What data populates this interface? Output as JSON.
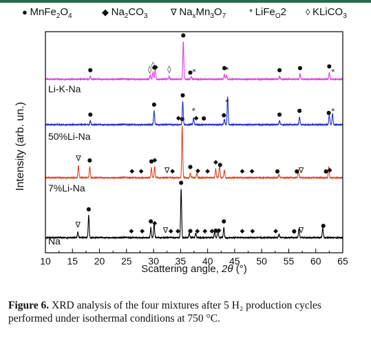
{
  "chart_data": {
    "type": "line",
    "xlabel": "Scattering angle, 2θ (°)",
    "ylabel": "Intensity (arb. un.)",
    "xlim": [
      10,
      65
    ],
    "xticks": [
      10,
      15,
      20,
      25,
      30,
      35,
      40,
      45,
      50,
      55,
      60,
      65
    ],
    "grid": false,
    "legend_position": "top",
    "legend": [
      {
        "marker": "●",
        "label": "MnFe2O4",
        "parts": [
          "MnFe",
          "2",
          "O",
          "4"
        ]
      },
      {
        "marker": "◆",
        "label": "Na2CO3",
        "parts": [
          "Na",
          "2",
          "CO",
          "3"
        ]
      },
      {
        "marker": "∇",
        "label": "NaxMn3O7",
        "parts": [
          "Na",
          "x",
          "Mn",
          "3",
          "O",
          "7"
        ]
      },
      {
        "marker": "*",
        "label": "LiFeO2",
        "parts": [
          "LiFe",
          "O",
          "2"
        ]
      },
      {
        "marker": "◊",
        "label": "KLiCO3",
        "parts": [
          "KLiCO",
          "3"
        ]
      }
    ],
    "series": [
      {
        "name": "Na",
        "color": "#000000",
        "peaks": [
          [
            16.0,
            0.1
          ],
          [
            18.0,
            0.4
          ],
          [
            29.5,
            0.18
          ],
          [
            30.1,
            0.26
          ],
          [
            35.1,
            0.88
          ],
          [
            36.6,
            0.08
          ],
          [
            37.8,
            0.08
          ],
          [
            41.3,
            0.1
          ],
          [
            41.9,
            0.15
          ],
          [
            43.0,
            0.18
          ],
          [
            53.2,
            0.06
          ],
          [
            56.9,
            0.16
          ],
          [
            61.3,
            0.18
          ]
        ],
        "markers": [
          {
            "x": 16.0,
            "symbol": "∇"
          },
          {
            "x": 18.0,
            "symbol": "●"
          },
          {
            "x": 25.9,
            "symbol": "◆"
          },
          {
            "x": 27.9,
            "symbol": "◆"
          },
          {
            "x": 29.5,
            "symbol": "●"
          },
          {
            "x": 30.2,
            "symbol": "◆"
          },
          {
            "x": 32.2,
            "symbol": "∇"
          },
          {
            "x": 33.2,
            "symbol": "◆"
          },
          {
            "x": 34.5,
            "symbol": "◆"
          },
          {
            "x": 35.1,
            "symbol": "●"
          },
          {
            "x": 36.8,
            "symbol": "●"
          },
          {
            "x": 38.1,
            "symbol": "◆"
          },
          {
            "x": 39.5,
            "symbol": "◆"
          },
          {
            "x": 40.8,
            "symbol": "◆"
          },
          {
            "x": 41.5,
            "symbol": "●"
          },
          {
            "x": 42.1,
            "symbol": "◆"
          },
          {
            "x": 43.0,
            "symbol": "●"
          },
          {
            "x": 46.4,
            "symbol": "◆"
          },
          {
            "x": 48.3,
            "symbol": "◆"
          },
          {
            "x": 52.6,
            "symbol": "◆"
          },
          {
            "x": 56.0,
            "symbol": "●"
          },
          {
            "x": 57.3,
            "symbol": "∇"
          },
          {
            "x": 61.4,
            "symbol": "●"
          }
        ]
      },
      {
        "name": "7%Li-Na",
        "color": "#d9432a",
        "peaks": [
          [
            16.1,
            0.22
          ],
          [
            18.2,
            0.2
          ],
          [
            29.6,
            0.18
          ],
          [
            30.2,
            0.2
          ],
          [
            35.3,
            0.95
          ],
          [
            36.8,
            0.08
          ],
          [
            38.0,
            0.08
          ],
          [
            41.5,
            0.16
          ],
          [
            42.2,
            0.22
          ],
          [
            43.1,
            0.14
          ],
          [
            53.2,
            0.06
          ],
          [
            56.8,
            0.14
          ],
          [
            62.4,
            0.2
          ]
        ],
        "markers": [
          {
            "x": 16.1,
            "symbol": "∇"
          },
          {
            "x": 18.2,
            "symbol": "●"
          },
          {
            "x": 26.0,
            "symbol": "◆"
          },
          {
            "x": 27.7,
            "symbol": "◆"
          },
          {
            "x": 29.6,
            "symbol": "●"
          },
          {
            "x": 30.2,
            "symbol": "◆"
          },
          {
            "x": 32.5,
            "symbol": "∇"
          },
          {
            "x": 33.5,
            "symbol": "◆"
          },
          {
            "x": 35.3,
            "symbol": "●"
          },
          {
            "x": 36.8,
            "symbol": "●"
          },
          {
            "x": 38.2,
            "symbol": "◆"
          },
          {
            "x": 40.0,
            "symbol": "◆"
          },
          {
            "x": 41.5,
            "symbol": "◆"
          },
          {
            "x": 42.3,
            "symbol": "●"
          },
          {
            "x": 46.4,
            "symbol": "◆"
          },
          {
            "x": 48.2,
            "symbol": "◆"
          },
          {
            "x": 52.9,
            "symbol": "●"
          },
          {
            "x": 56.5,
            "symbol": "●"
          },
          {
            "x": 57.3,
            "symbol": "∇"
          },
          {
            "x": 61.9,
            "symbol": "●"
          },
          {
            "x": 62.6,
            "symbol": "◆"
          }
        ]
      },
      {
        "name": "50%Li-Na",
        "color": "#1a2fd1",
        "peaks": [
          [
            18.3,
            0.07
          ],
          [
            30.1,
            0.25
          ],
          [
            35.4,
            0.42
          ],
          [
            37.4,
            0.12
          ],
          [
            43.1,
            0.1
          ],
          [
            43.7,
            0.5
          ],
          [
            53.3,
            0.07
          ],
          [
            57.0,
            0.14
          ],
          [
            62.5,
            0.18
          ],
          [
            63.1,
            0.2
          ]
        ],
        "markers": [
          {
            "x": 18.3,
            "symbol": "●"
          },
          {
            "x": 30.1,
            "symbol": "●"
          },
          {
            "x": 34.6,
            "symbol": "◆"
          },
          {
            "x": 35.4,
            "symbol": "●"
          },
          {
            "x": 37.4,
            "symbol": "*"
          },
          {
            "x": 37.9,
            "symbol": "◆"
          },
          {
            "x": 39.3,
            "symbol": "●"
          },
          {
            "x": 43.0,
            "symbol": "●"
          },
          {
            "x": 43.6,
            "symbol": "*"
          },
          {
            "x": 53.3,
            "symbol": "●"
          },
          {
            "x": 57.0,
            "symbol": "●"
          },
          {
            "x": 62.4,
            "symbol": "●"
          },
          {
            "x": 63.2,
            "symbol": "*"
          }
        ]
      },
      {
        "name": "Li-K-Na",
        "color": "#e23ee0",
        "peaks": [
          [
            18.3,
            0.05
          ],
          [
            29.4,
            0.08
          ],
          [
            29.9,
            0.12
          ],
          [
            30.3,
            0.18
          ],
          [
            32.9,
            0.05
          ],
          [
            35.5,
            0.68
          ],
          [
            37.0,
            0.05
          ],
          [
            43.1,
            0.09
          ],
          [
            43.5,
            0.07
          ],
          [
            53.3,
            0.05
          ],
          [
            57.1,
            0.09
          ],
          [
            62.5,
            0.12
          ]
        ],
        "markers": [
          {
            "x": 18.3,
            "symbol": "●"
          },
          {
            "x": 29.3,
            "symbol": "◊"
          },
          {
            "x": 29.9,
            "symbol": "◊"
          },
          {
            "x": 30.2,
            "symbol": "●"
          },
          {
            "x": 30.4,
            "symbol": "◆"
          },
          {
            "x": 32.9,
            "symbol": "◊"
          },
          {
            "x": 35.5,
            "symbol": "●"
          },
          {
            "x": 36.8,
            "symbol": "●"
          },
          {
            "x": 37.5,
            "symbol": "*"
          },
          {
            "x": 43.1,
            "symbol": "●"
          },
          {
            "x": 43.6,
            "symbol": "*"
          },
          {
            "x": 53.3,
            "symbol": "●"
          },
          {
            "x": 57.1,
            "symbol": "●"
          },
          {
            "x": 62.5,
            "symbol": "●"
          },
          {
            "x": 63.2,
            "symbol": "*"
          }
        ]
      }
    ]
  },
  "caption": {
    "lead": "Figure 6.",
    "text": " XRD analysis of the four mixtures after 5 H₂ production cycles performed under isothermal conditions at 750 °C."
  }
}
